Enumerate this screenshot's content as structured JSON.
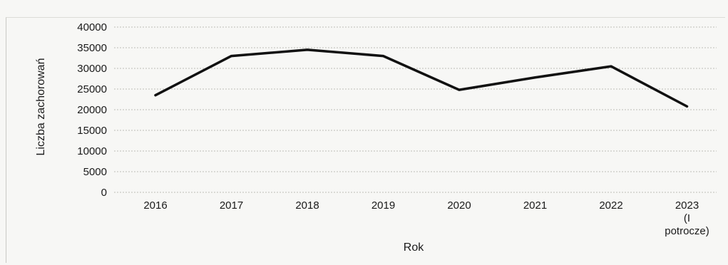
{
  "chart_data": {
    "type": "line",
    "title": "",
    "xlabel": "Rok",
    "ylabel": "Liczba zachorowań",
    "ylim": [
      0,
      40000
    ],
    "yticks": [
      "0",
      "5000",
      "10000",
      "15000",
      "20000",
      "25000",
      "30000",
      "35000",
      "40000"
    ],
    "categories": [
      [
        "2016"
      ],
      [
        "2017"
      ],
      [
        "2018"
      ],
      [
        "2019"
      ],
      [
        "2020"
      ],
      [
        "2021"
      ],
      [
        "2022"
      ],
      [
        "2023",
        "(I",
        "potrocze)"
      ]
    ],
    "series": [
      {
        "values": [
          23500,
          33000,
          34500,
          33000,
          24800,
          27800,
          30500,
          20800
        ]
      }
    ],
    "grid": true,
    "legend": "none"
  }
}
